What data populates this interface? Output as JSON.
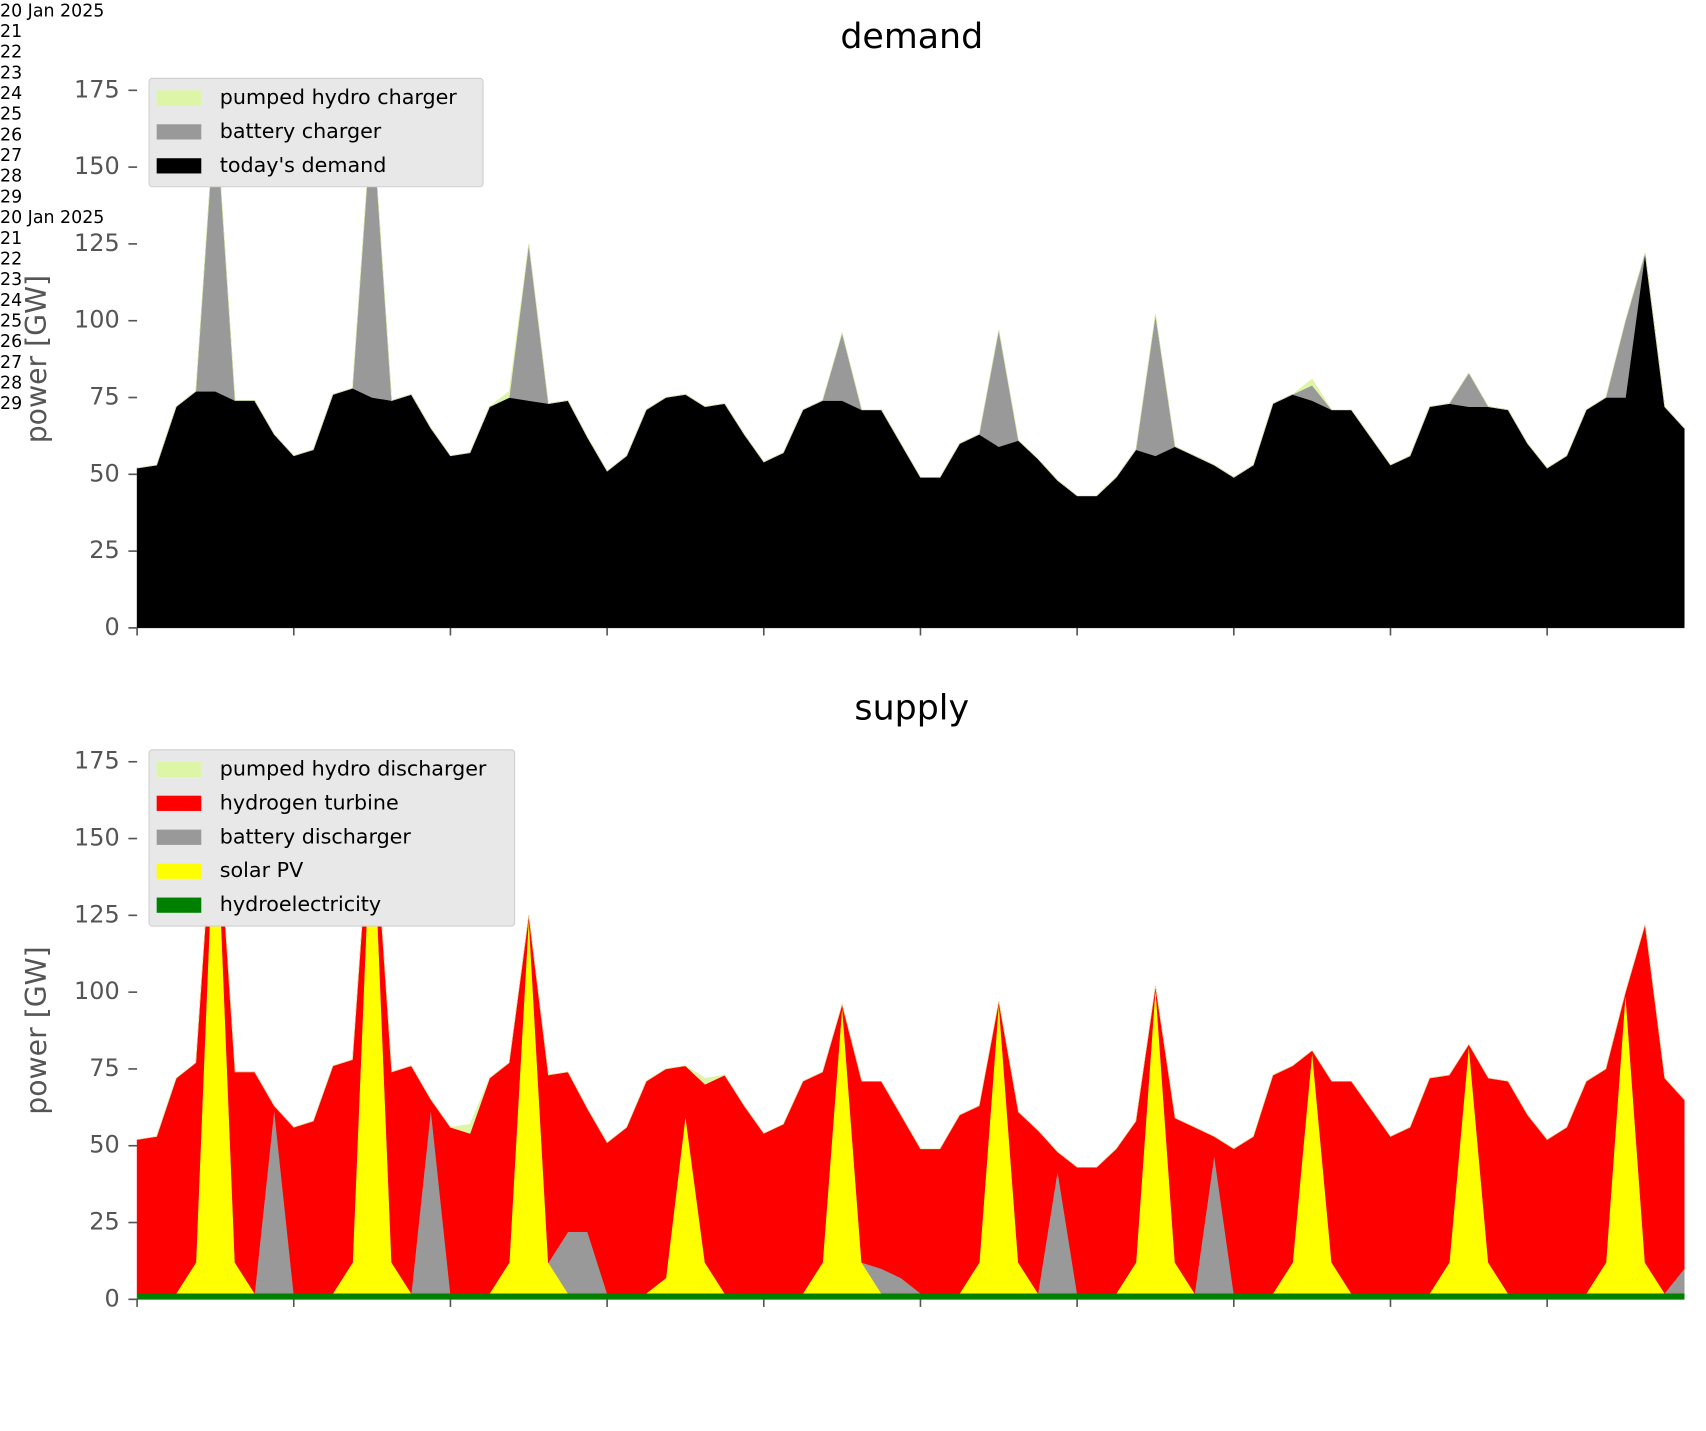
{
  "chart_data": [
    {
      "type": "area",
      "stacked": true,
      "title": "demand",
      "y_label": "power [GW]",
      "x": [
        20,
        20.125,
        20.25,
        20.375,
        20.5,
        20.625,
        20.75,
        20.875,
        21,
        21.125,
        21.25,
        21.375,
        21.5,
        21.625,
        21.75,
        21.875,
        22,
        22.125,
        22.25,
        22.375,
        22.5,
        22.625,
        22.75,
        22.875,
        23,
        23.125,
        23.25,
        23.375,
        23.5,
        23.625,
        23.75,
        23.875,
        24,
        24.125,
        24.25,
        24.375,
        24.5,
        24.625,
        24.75,
        24.875,
        25,
        25.125,
        25.25,
        25.375,
        25.5,
        25.625,
        25.75,
        25.875,
        26,
        26.125,
        26.25,
        26.375,
        26.5,
        26.625,
        26.75,
        26.875,
        27,
        27.125,
        27.25,
        27.375,
        27.5,
        27.625,
        27.75,
        27.875,
        28,
        28.125,
        28.25,
        28.375,
        28.5,
        28.625,
        28.75,
        28.875,
        29,
        29.125,
        29.25,
        29.375,
        29.5,
        29.625,
        29.75,
        29.875
      ],
      "xlim": [
        20,
        29.875
      ],
      "xticks": [
        {
          "value": 20,
          "label": "20\nJan\n2025"
        },
        21,
        22,
        23,
        24,
        25,
        26,
        27,
        28,
        29
      ],
      "ylim": [
        0,
        175
      ],
      "yticks": [
        0,
        25,
        50,
        75,
        100,
        125,
        150,
        175
      ],
      "legend": "upper left",
      "series": [
        {
          "name": "pumped hydro charger",
          "color": "#dcf5a6",
          "values": [
            0,
            0,
            0,
            0,
            0,
            0,
            0,
            0,
            0,
            0,
            0,
            0,
            0,
            0,
            0,
            0,
            0,
            0,
            0,
            2,
            0,
            0,
            0,
            0,
            0,
            0,
            0,
            0,
            0,
            0,
            0,
            0,
            0,
            0,
            0,
            0,
            0,
            0,
            0,
            0,
            0,
            0,
            0,
            0,
            0,
            0,
            0,
            0,
            0,
            0,
            0,
            0,
            0,
            0,
            0,
            0,
            0,
            0,
            0,
            0,
            2,
            0,
            0,
            0,
            0,
            0,
            0,
            0,
            0,
            0,
            0,
            0,
            0,
            0,
            0,
            0,
            0,
            0,
            0,
            0
          ]
        },
        {
          "name": "battery charger",
          "color": "#999999",
          "values": [
            0,
            0,
            0,
            0,
            93,
            0,
            0,
            0,
            0,
            0,
            0,
            0,
            93,
            0,
            0,
            0,
            0,
            0,
            0,
            0,
            51,
            0,
            0,
            0,
            0,
            0,
            0,
            0,
            0,
            0,
            0,
            0,
            0,
            0,
            0,
            0,
            22,
            0,
            0,
            0,
            0,
            0,
            0,
            0,
            38,
            0,
            0,
            0,
            0,
            0,
            0,
            0,
            46,
            0,
            0,
            0,
            0,
            0,
            0,
            0,
            5,
            0,
            0,
            0,
            0,
            0,
            0,
            0,
            11,
            0,
            0,
            0,
            0,
            0,
            0,
            0,
            25,
            0,
            0,
            0
          ]
        },
        {
          "name": "today's demand",
          "color": "#000000",
          "values": [
            52,
            53,
            72,
            77,
            77,
            74,
            74,
            63,
            56,
            58,
            76,
            78,
            75,
            74,
            76,
            65,
            56,
            57,
            72,
            75,
            74,
            73,
            74,
            62,
            51,
            56,
            71,
            75,
            76,
            72,
            73,
            63,
            54,
            57,
            71,
            74,
            74,
            71,
            71,
            60,
            49,
            49,
            60,
            63,
            59,
            61,
            55,
            48,
            43,
            43,
            49,
            58,
            56,
            59,
            56,
            53,
            49,
            53,
            73,
            76,
            74,
            71,
            71,
            62,
            53,
            56,
            72,
            73,
            72,
            72,
            71,
            60,
            52,
            56,
            71,
            75,
            75,
            122,
            72,
            65
          ]
        }
      ]
    },
    {
      "type": "area",
      "stacked": true,
      "title": "supply",
      "y_label": "power [GW]",
      "x": [
        20,
        20.125,
        20.25,
        20.375,
        20.5,
        20.625,
        20.75,
        20.875,
        21,
        21.125,
        21.25,
        21.375,
        21.5,
        21.625,
        21.75,
        21.875,
        22,
        22.125,
        22.25,
        22.375,
        22.5,
        22.625,
        22.75,
        22.875,
        23,
        23.125,
        23.25,
        23.375,
        23.5,
        23.625,
        23.75,
        23.875,
        24,
        24.125,
        24.25,
        24.375,
        24.5,
        24.625,
        24.75,
        24.875,
        25,
        25.125,
        25.25,
        25.375,
        25.5,
        25.625,
        25.75,
        25.875,
        26,
        26.125,
        26.25,
        26.375,
        26.5,
        26.625,
        26.75,
        26.875,
        27,
        27.125,
        27.25,
        27.375,
        27.5,
        27.625,
        27.75,
        27.875,
        28,
        28.125,
        28.25,
        28.375,
        28.5,
        28.625,
        28.75,
        28.875,
        29,
        29.125,
        29.25,
        29.375,
        29.5,
        29.625,
        29.75,
        29.875
      ],
      "xlim": [
        20,
        29.875
      ],
      "xticks": [
        {
          "value": 20,
          "label": "20\nJan\n2025"
        },
        21,
        22,
        23,
        24,
        25,
        26,
        27,
        28,
        29
      ],
      "ylim": [
        0,
        175
      ],
      "yticks": [
        0,
        25,
        50,
        75,
        100,
        125,
        150,
        175
      ],
      "legend": "upper left",
      "series": [
        {
          "name": "pumped hydro discharger",
          "color": "#dcf5a6",
          "values": [
            0,
            0,
            0,
            0,
            0,
            0,
            0,
            0,
            0,
            0,
            0,
            0,
            0,
            0,
            0,
            0,
            0,
            3,
            0,
            0,
            0,
            0,
            0,
            0,
            0,
            0,
            0,
            0,
            0,
            2,
            0,
            0,
            0,
            0,
            0,
            0,
            0,
            0,
            0,
            0,
            0,
            0,
            0,
            0,
            0,
            0,
            0,
            0,
            0,
            0,
            0,
            0,
            0,
            0,
            0,
            0,
            0,
            0,
            0,
            0,
            0,
            0,
            0,
            0,
            0,
            0,
            0,
            0,
            0,
            0,
            0,
            0,
            0,
            0,
            0,
            0,
            0,
            0,
            0,
            0
          ]
        },
        {
          "name": "hydrogen turbine",
          "color": "#ff0000",
          "values": [
            50,
            51,
            70,
            65,
            0,
            62,
            72,
            1,
            54,
            56,
            74,
            66,
            0,
            62,
            74,
            3,
            54,
            52,
            70,
            65,
            0,
            61,
            52,
            40,
            49,
            54,
            69,
            68,
            16,
            58,
            71,
            61,
            52,
            55,
            69,
            62,
            0,
            59,
            61,
            53,
            47,
            47,
            58,
            51,
            0,
            49,
            53,
            6,
            41,
            41,
            47,
            46,
            0,
            47,
            54,
            6,
            47,
            51,
            71,
            64,
            0,
            59,
            69,
            60,
            51,
            54,
            70,
            61,
            0,
            60,
            69,
            58,
            50,
            54,
            69,
            63,
            0,
            110,
            70,
            55
          ]
        },
        {
          "name": "battery discharger",
          "color": "#999999",
          "values": [
            0,
            0,
            0,
            0,
            0,
            0,
            0,
            60,
            0,
            0,
            0,
            0,
            0,
            0,
            0,
            60,
            0,
            0,
            0,
            0,
            0,
            0,
            20,
            20,
            0,
            0,
            0,
            0,
            0,
            0,
            0,
            0,
            0,
            0,
            0,
            0,
            0,
            0,
            8,
            5,
            0,
            0,
            0,
            0,
            0,
            0,
            0,
            40,
            0,
            0,
            0,
            0,
            0,
            0,
            0,
            45,
            0,
            0,
            0,
            0,
            0,
            0,
            0,
            0,
            0,
            0,
            0,
            0,
            0,
            0,
            0,
            0,
            0,
            0,
            0,
            0,
            0,
            0,
            0,
            8
          ]
        },
        {
          "name": "solar PV",
          "color": "#ffff00",
          "values": [
            0,
            0,
            0,
            10,
            168,
            10,
            0,
            0,
            0,
            0,
            0,
            10,
            166,
            10,
            0,
            0,
            0,
            0,
            0,
            10,
            123,
            10,
            0,
            0,
            0,
            0,
            0,
            5,
            58,
            10,
            0,
            0,
            0,
            0,
            0,
            10,
            94,
            10,
            0,
            0,
            0,
            0,
            0,
            10,
            95,
            10,
            0,
            0,
            0,
            0,
            0,
            10,
            100,
            10,
            0,
            0,
            0,
            0,
            0,
            10,
            79,
            10,
            0,
            0,
            0,
            0,
            0,
            10,
            81,
            10,
            0,
            0,
            0,
            0,
            0,
            10,
            98,
            10,
            0,
            0
          ]
        },
        {
          "name": "hydroelectricity",
          "color": "#008000",
          "values": [
            2,
            2,
            2,
            2,
            2,
            2,
            2,
            2,
            2,
            2,
            2,
            2,
            2,
            2,
            2,
            2,
            2,
            2,
            2,
            2,
            2,
            2,
            2,
            2,
            2,
            2,
            2,
            2,
            2,
            2,
            2,
            2,
            2,
            2,
            2,
            2,
            2,
            2,
            2,
            2,
            2,
            2,
            2,
            2,
            2,
            2,
            2,
            2,
            2,
            2,
            2,
            2,
            2,
            2,
            2,
            2,
            2,
            2,
            2,
            2,
            2,
            2,
            2,
            2,
            2,
            2,
            2,
            2,
            2,
            2,
            2,
            2,
            2,
            2,
            2,
            2,
            2,
            2,
            2,
            2
          ]
        }
      ]
    }
  ]
}
